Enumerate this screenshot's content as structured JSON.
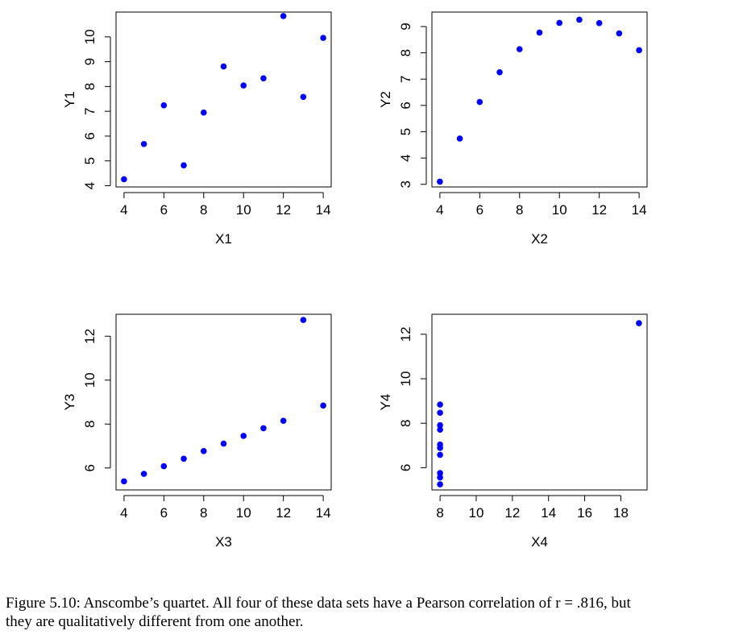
{
  "chart_data": [
    {
      "type": "scatter",
      "xlabel": "X1",
      "ylabel": "Y1",
      "xlim": [
        3.6,
        14.4
      ],
      "ylim": [
        3.95,
        11.0
      ],
      "xticks": [
        4,
        6,
        8,
        10,
        12,
        14
      ],
      "yticks": [
        4,
        5,
        6,
        7,
        8,
        9,
        10
      ],
      "x": [
        4,
        5,
        6,
        7,
        8,
        9,
        10,
        11,
        12,
        13,
        14
      ],
      "y": [
        4.26,
        5.68,
        7.24,
        4.82,
        6.95,
        8.81,
        8.04,
        8.33,
        10.84,
        7.58,
        9.96
      ],
      "color": "#0000ff"
    },
    {
      "type": "scatter",
      "xlabel": "X2",
      "ylabel": "Y2",
      "xlim": [
        3.6,
        14.4
      ],
      "ylim": [
        2.9,
        9.55
      ],
      "xticks": [
        4,
        6,
        8,
        10,
        12,
        14
      ],
      "yticks": [
        3,
        4,
        5,
        6,
        7,
        8,
        9
      ],
      "x": [
        4,
        5,
        6,
        7,
        8,
        9,
        10,
        11,
        12,
        13,
        14
      ],
      "y": [
        3.1,
        4.74,
        6.13,
        7.26,
        8.14,
        8.77,
        9.14,
        9.26,
        9.13,
        8.74,
        8.1
      ],
      "color": "#0000ff"
    },
    {
      "type": "scatter",
      "xlabel": "X3",
      "ylabel": "Y3",
      "xlim": [
        3.6,
        14.4
      ],
      "ylim": [
        5.0,
        13.0
      ],
      "xticks": [
        4,
        6,
        8,
        10,
        12,
        14
      ],
      "yticks": [
        6,
        8,
        10,
        12
      ],
      "x": [
        4,
        5,
        6,
        7,
        8,
        9,
        10,
        11,
        12,
        13,
        14
      ],
      "y": [
        5.39,
        5.73,
        6.08,
        6.42,
        6.77,
        7.11,
        7.46,
        7.81,
        8.15,
        12.74,
        8.84
      ],
      "color": "#0000ff"
    },
    {
      "type": "scatter",
      "xlabel": "X4",
      "ylabel": "Y4",
      "xlim": [
        7.55,
        19.45
      ],
      "ylim": [
        5.0,
        12.9
      ],
      "xticks": [
        8,
        10,
        12,
        14,
        16,
        18
      ],
      "yticks": [
        6,
        8,
        10,
        12
      ],
      "x": [
        8,
        8,
        8,
        8,
        8,
        8,
        8,
        19,
        8,
        8,
        8
      ],
      "y": [
        6.58,
        5.76,
        7.71,
        8.84,
        8.47,
        7.04,
        5.25,
        12.5,
        5.56,
        7.91,
        6.89
      ],
      "color": "#0000ff"
    }
  ],
  "caption": {
    "line1": "Figure 5.10: Anscombe’s quartet. All four of these data sets have a Pearson correlation of r = .816, but",
    "line2": "they are qualitatively different from one another."
  }
}
